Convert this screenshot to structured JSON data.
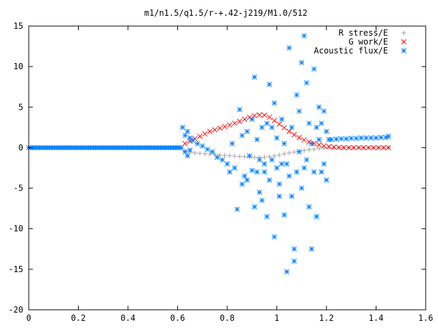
{
  "chart_data": {
    "type": "scatter",
    "title": "m1/n1.5/q1.5/r-+.42-j219/M1.0/512",
    "xlim": [
      0,
      1.6
    ],
    "ylim": [
      -20,
      15
    ],
    "x_ticks": [
      0,
      0.2,
      0.4,
      0.6,
      0.8,
      1,
      1.2,
      1.4,
      1.6
    ],
    "y_ticks": [
      -20,
      -15,
      -10,
      -5,
      0,
      5,
      10,
      15
    ],
    "legend_position": "top-right",
    "series": [
      {
        "name": "R stress/E",
        "color": "#a0a0a0",
        "marker": "plus",
        "x": [
          0.63,
          0.65,
          0.67,
          0.69,
          0.71,
          0.73,
          0.75,
          0.77,
          0.79,
          0.81,
          0.83,
          0.85,
          0.87,
          0.89,
          0.91,
          0.93,
          0.95,
          0.97,
          0.99,
          1.01,
          1.03,
          1.05,
          1.07,
          1.09,
          1.11,
          1.13,
          1.15,
          1.17,
          1.19,
          1.21,
          1.23,
          1.25,
          1.27,
          1.29,
          1.31,
          1.33,
          1.35,
          1.37,
          1.39,
          1.41,
          1.43,
          1.45
        ],
        "y": [
          -0.4,
          -0.55,
          -0.65,
          -0.7,
          -0.75,
          -0.8,
          -0.85,
          -0.9,
          -0.95,
          -1.0,
          -1.05,
          -1.1,
          -1.12,
          -1.15,
          -1.18,
          -1.2,
          -1.18,
          -1.1,
          -1.0,
          -0.9,
          -0.78,
          -0.65,
          -0.55,
          -0.45,
          -0.35,
          -0.25,
          -0.18,
          -0.1,
          -0.05,
          -0.02,
          0,
          0,
          0,
          0,
          0,
          0,
          0,
          0,
          0,
          0,
          0,
          0
        ]
      },
      {
        "name": "G work/E",
        "color": "#ff0000",
        "marker": "cross",
        "x": [
          0.63,
          0.65,
          0.67,
          0.69,
          0.71,
          0.73,
          0.75,
          0.77,
          0.79,
          0.81,
          0.83,
          0.85,
          0.87,
          0.89,
          0.91,
          0.93,
          0.95,
          0.97,
          0.99,
          1.01,
          1.03,
          1.05,
          1.07,
          1.09,
          1.11,
          1.13,
          1.15,
          1.17,
          1.19,
          1.21,
          1.23,
          1.25,
          1.27,
          1.29,
          1.31,
          1.33,
          1.35,
          1.37,
          1.39,
          1.41,
          1.43,
          1.45
        ],
        "y": [
          0.5,
          0.8,
          1.1,
          1.4,
          1.7,
          2.0,
          2.2,
          2.4,
          2.6,
          2.8,
          3.0,
          3.25,
          3.5,
          3.75,
          3.95,
          4.05,
          4.0,
          3.75,
          3.35,
          2.9,
          2.45,
          2.0,
          1.6,
          1.25,
          0.95,
          0.7,
          0.5,
          0.35,
          0.22,
          0.12,
          0.06,
          0.03,
          0.01,
          0,
          0,
          0,
          0,
          0,
          0,
          0,
          0,
          0
        ]
      },
      {
        "name": "Acoustic flux/E",
        "color": "#0080ff",
        "marker": "star",
        "baseline": {
          "x_start": 0,
          "x_end": 0.62,
          "y": 0
        },
        "x": [
          0.62,
          0.63,
          0.63,
          0.64,
          0.64,
          0.65,
          0.65,
          0.66,
          0.68,
          0.7,
          0.72,
          0.74,
          0.76,
          0.78,
          0.8,
          0.81,
          0.82,
          0.83,
          0.84,
          0.85,
          0.86,
          0.86,
          0.87,
          0.88,
          0.88,
          0.89,
          0.9,
          0.9,
          0.91,
          0.91,
          0.92,
          0.92,
          0.93,
          0.93,
          0.94,
          0.94,
          0.95,
          0.95,
          0.96,
          0.96,
          0.97,
          0.97,
          0.98,
          0.98,
          0.99,
          0.99,
          1.0,
          1.0,
          1.01,
          1.01,
          1.02,
          1.02,
          1.03,
          1.03,
          1.04,
          1.04,
          1.05,
          1.05,
          1.06,
          1.06,
          1.07,
          1.07,
          1.08,
          1.08,
          1.09,
          1.09,
          1.1,
          1.1,
          1.11,
          1.11,
          1.12,
          1.12,
          1.13,
          1.13,
          1.14,
          1.14,
          1.15,
          1.15,
          1.16,
          1.16,
          1.17,
          1.17,
          1.18,
          1.18,
          1.19,
          1.19,
          1.2,
          1.2,
          1.21,
          1.22,
          1.24,
          1.26,
          1.28,
          1.3,
          1.32,
          1.34,
          1.36,
          1.38,
          1.4,
          1.42,
          1.44,
          1.45
        ],
        "y": [
          2.5,
          -0.5,
          1.5,
          -1.0,
          2.0,
          -0.3,
          1.2,
          0.9,
          0.5,
          0.2,
          -0.2,
          -0.5,
          -1.2,
          -1.5,
          -2.0,
          -3.0,
          0.5,
          -2.5,
          -7.6,
          4.7,
          -4.5,
          1.5,
          -3.5,
          2.0,
          -4.0,
          -1.0,
          -2.8,
          3.5,
          8.7,
          -7.3,
          -3.0,
          1.0,
          -5.5,
          -1.5,
          -6.5,
          2.5,
          -3.0,
          -2.0,
          -8.5,
          3.0,
          7.8,
          -4.0,
          -1.5,
          2.5,
          -11.0,
          5.5,
          -2.5,
          1.2,
          -4.5,
          -6.0,
          -2.0,
          3.5,
          -8.3,
          0.5,
          -15.3,
          -2.0,
          -3.5,
          12.3,
          -6.0,
          2.5,
          -12.5,
          -14.0,
          6.5,
          -3.0,
          -0.5,
          4.5,
          10.5,
          -5.0,
          13.8,
          -2.5,
          8.0,
          -1.5,
          3.0,
          -7.3,
          -12.5,
          0.5,
          9.7,
          -3.0,
          2.5,
          -8.5,
          5.0,
          1.0,
          -3.0,
          3.0,
          4.5,
          -2.0,
          2.0,
          -4.0,
          1.0,
          1.0,
          1.05,
          1.1,
          1.1,
          1.15,
          1.15,
          1.2,
          1.2,
          1.2,
          1.2,
          1.25,
          1.25,
          1.4
        ]
      }
    ]
  }
}
